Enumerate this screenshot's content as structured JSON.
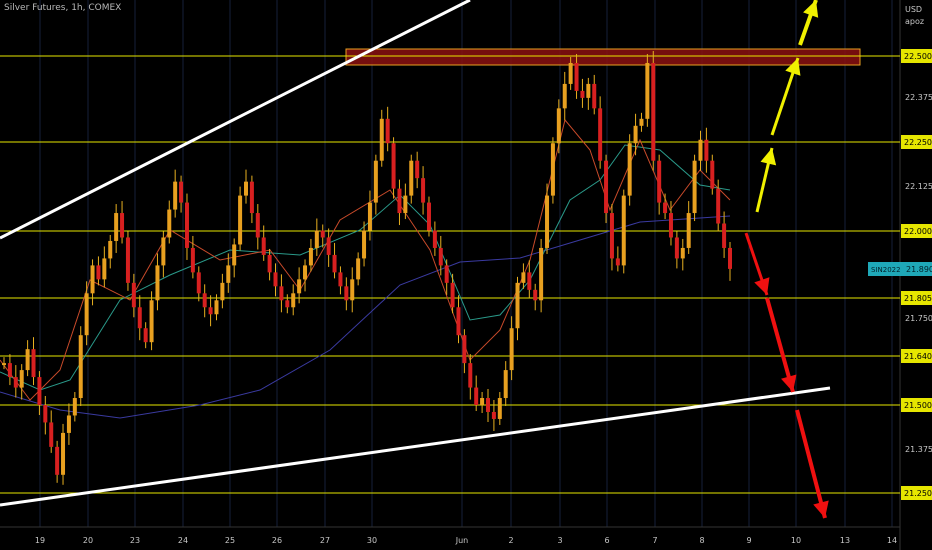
{
  "header": {
    "title": "Silver Futures, 1h, COMEX",
    "currency": "USD",
    "scale_label": "apoz"
  },
  "chart_data": {
    "type": "candlestick",
    "title": "Silver Futures, 1h, COMEX",
    "ylim": [
      21.19,
      22.75
    ],
    "x_ticks": [
      "19",
      "20",
      "23",
      "24",
      "25",
      "26",
      "27",
      "30",
      "Jun",
      "2",
      "3",
      "6",
      "7",
      "8",
      "9",
      "10",
      "13",
      "14"
    ],
    "y_ticks": [
      21.375,
      21.75,
      22.125,
      22.375
    ],
    "level_lines": [
      22.5,
      22.25,
      22.0,
      21.805,
      21.64,
      21.5,
      21.25
    ],
    "level_labels": [
      "22.500",
      "22.250",
      "22.000",
      "21.805",
      "21.640",
      "21.500",
      "21.250"
    ],
    "y_tick_labels": [
      "21.375",
      "21.750",
      "22.125",
      "22.375"
    ],
    "current_price": {
      "symbol": "SIN2022",
      "value": "21.890"
    },
    "resistance_zone": [
      22.48,
      22.52
    ],
    "trend_lines": [
      {
        "name": "upper-channel",
        "points": [
          [
            "17",
            22.0
          ],
          [
            "Jun 1",
            22.8
          ]
        ]
      },
      {
        "name": "lower-channel",
        "points": [
          [
            "18",
            21.26
          ],
          [
            "Jun 9",
            21.59
          ]
        ]
      }
    ],
    "candles_close": [
      21.62,
      21.58,
      21.55,
      21.6,
      21.66,
      21.58,
      21.5,
      21.45,
      21.38,
      21.3,
      21.42,
      21.47,
      21.52,
      21.7,
      21.82,
      21.9,
      21.86,
      21.92,
      21.97,
      22.05,
      21.98,
      21.85,
      21.78,
      21.72,
      21.68,
      21.8,
      21.9,
      21.98,
      22.06,
      22.14,
      22.08,
      21.95,
      21.88,
      21.82,
      21.78,
      21.76,
      21.8,
      21.85,
      21.9,
      21.96,
      22.1,
      22.14,
      22.05,
      21.98,
      21.93,
      21.88,
      21.84,
      21.8,
      21.78,
      21.82,
      21.86,
      21.9,
      21.95,
      22.0,
      21.98,
      21.93,
      21.88,
      21.84,
      21.8,
      21.86,
      21.92,
      22.0,
      22.08,
      22.2,
      22.32,
      22.25,
      22.12,
      22.05,
      22.1,
      22.2,
      22.15,
      22.08,
      22.0,
      21.95,
      21.9,
      21.85,
      21.78,
      21.7,
      21.62,
      21.55,
      21.5,
      21.52,
      21.48,
      21.46,
      21.52,
      21.6,
      21.72,
      21.85,
      21.88,
      21.83,
      21.8,
      21.95,
      22.1,
      22.25,
      22.35,
      22.42,
      22.48,
      22.4,
      22.38,
      22.42,
      22.35,
      22.2,
      22.05,
      21.92,
      21.9,
      22.1,
      22.25,
      22.3,
      22.32,
      22.48,
      22.2,
      22.08,
      22.05,
      21.98,
      21.92,
      21.95,
      22.05,
      22.2,
      22.26,
      22.2,
      22.12,
      22.02,
      21.95,
      21.89
    ]
  }
}
